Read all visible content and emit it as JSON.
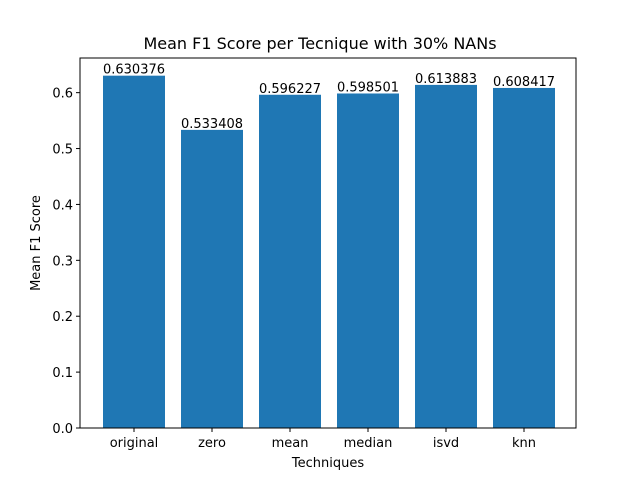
{
  "chart_data": {
    "type": "bar",
    "title": "Mean F1 Score per Tecnique with 30% NANs",
    "xlabel": "Techniques",
    "ylabel": "Mean F1 Score",
    "categories": [
      "original",
      "zero",
      "mean",
      "median",
      "isvd",
      "knn"
    ],
    "values": [
      0.630376,
      0.533408,
      0.596227,
      0.598501,
      0.613883,
      0.608417
    ],
    "data_labels": [
      "0.630376",
      "0.533408",
      "0.596227",
      "0.598501",
      "0.613883",
      "0.608417"
    ],
    "ylim": [
      0,
      0.662
    ],
    "yticks": [
      0.0,
      0.1,
      0.2,
      0.3,
      0.4,
      0.5,
      0.6
    ],
    "ytick_labels": [
      "0.0",
      "0.1",
      "0.2",
      "0.3",
      "0.4",
      "0.5",
      "0.6"
    ],
    "bar_color": "#1f77b4",
    "grid": false,
    "legend": "none"
  }
}
